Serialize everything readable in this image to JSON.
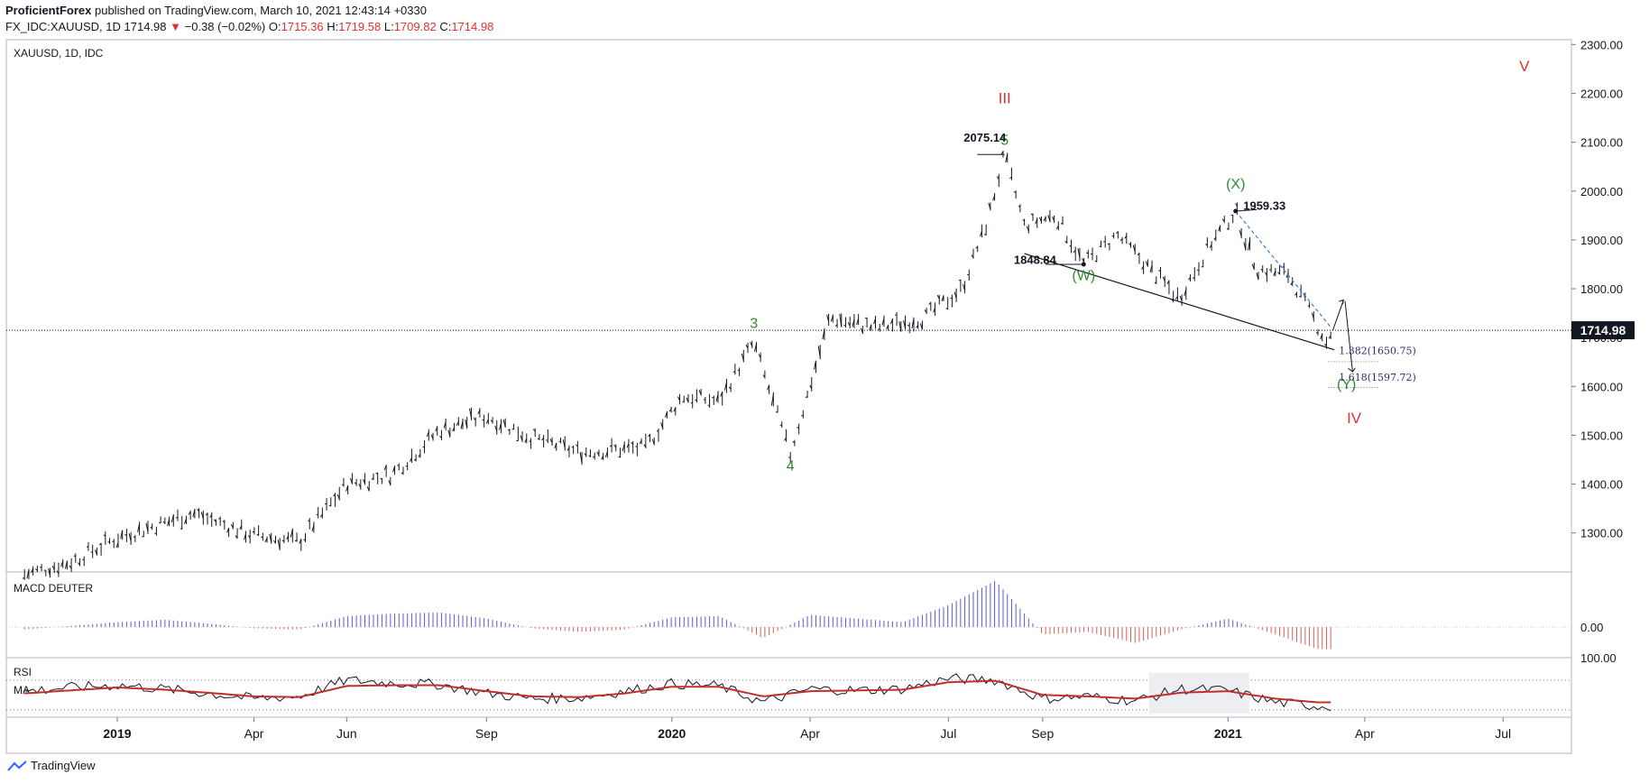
{
  "header": {
    "author": "ProficientForex",
    "published_text": "published on TradingView.com, March 10, 2021 12:43:14 +0330",
    "symbol": "FX_IDC:XAUUSD, 1D",
    "last": "1714.98",
    "change": "−0.38 (−0.02%)",
    "open_label": "O:",
    "open": "1715.36",
    "high_label": "H:",
    "high": "1719.58",
    "low_label": "L:",
    "low": "1709.82",
    "close_label": "C:",
    "close": "1714.98"
  },
  "pane_title": "XAUUSD, 1D, IDC",
  "price_label": "1714.98",
  "footer_brand": "TradingView",
  "colors": {
    "price_bars": "#131722",
    "wave_red": "#e0312b",
    "wave_green": "#2e8b2e",
    "macd_pos": "#5b5bd6",
    "macd_neg": "#e05a5a",
    "rsi": "#131722",
    "rsi_ma": "#c0302b",
    "trend_dash": "#3b7ddd"
  },
  "chart_data": [
    {
      "type": "line",
      "title": "XAUUSD, 1D, IDC",
      "xlabel": "",
      "ylabel": "",
      "ylim": [
        1220,
        2310
      ],
      "x_ticks": [
        "2019",
        "Apr",
        "Jun",
        "Sep",
        "2020",
        "Apr",
        "Jul",
        "Sep",
        "2021",
        "Apr",
        "Jul"
      ],
      "y_ticks": [
        "1300.00",
        "1400.00",
        "1500.00",
        "1600.00",
        "1700.00",
        "1800.00",
        "1900.00",
        "2000.00",
        "2100.00",
        "2200.00",
        "2300.00"
      ],
      "series": [
        {
          "name": "XAUUSD",
          "x": [
            "2018-11-01",
            "2018-12-01",
            "2019-01-01",
            "2019-02-20",
            "2019-04-01",
            "2019-05-01",
            "2019-06-01",
            "2019-07-01",
            "2019-08-01",
            "2019-09-01",
            "2019-10-01",
            "2019-11-01",
            "2019-12-15",
            "2020-01-08",
            "2020-02-01",
            "2020-02-24",
            "2020-03-19",
            "2020-04-14",
            "2020-05-15",
            "2020-06-15",
            "2020-07-10",
            "2020-07-27",
            "2020-08-07",
            "2020-08-20",
            "2020-09-10",
            "2020-09-28",
            "2020-10-20",
            "2020-11-30",
            "2020-12-20",
            "2021-01-06",
            "2021-01-20",
            "2021-02-10",
            "2021-03-08",
            "2021-03-10"
          ],
          "values": [
            1215,
            1240,
            1290,
            1340,
            1295,
            1282,
            1400,
            1420,
            1510,
            1540,
            1495,
            1465,
            1475,
            1580,
            1570,
            1690,
            1460,
            1740,
            1720,
            1740,
            1800,
            1940,
            2075,
            1930,
            1950,
            1850,
            1910,
            1780,
            1890,
            1959,
            1840,
            1830,
            1685,
            1715
          ]
        }
      ],
      "annotations": [
        {
          "text": "III",
          "color": "red",
          "x": "2020-08-07",
          "y": 2180
        },
        {
          "text": "V",
          "color": "red",
          "x": "2021-07-15",
          "y": 2245
        },
        {
          "text": "IV",
          "color": "red",
          "x": "2021-03-25",
          "y": 1525
        },
        {
          "text": "5",
          "color": "green",
          "x": "2020-08-07",
          "y": 2095
        },
        {
          "text": "3",
          "color": "green",
          "x": "2020-02-24",
          "y": 1720
        },
        {
          "text": "4",
          "color": "green",
          "x": "2020-03-19",
          "y": 1428
        },
        {
          "text": "(X)",
          "color": "green",
          "x": "2021-01-06",
          "y": 2005
        },
        {
          "text": "(W)",
          "color": "green",
          "x": "2020-09-28",
          "y": 1818
        },
        {
          "text": "(Y)",
          "color": "green",
          "x": "2021-03-20",
          "y": 1595
        },
        {
          "text": "2075.14",
          "color": "black",
          "x": "2020-07-25",
          "y": 2101
        },
        {
          "text": "1959.33",
          "color": "black",
          "x": "2021-01-25",
          "y": 1962
        },
        {
          "text": "1848.84",
          "color": "black",
          "x": "2020-08-27",
          "y": 1851
        },
        {
          "text": "1.382(1650.75)",
          "color": "navy",
          "x": "2021-03-15",
          "y": 1666
        },
        {
          "text": "1.618(1597.72)",
          "color": "navy",
          "x": "2021-03-15",
          "y": 1612
        }
      ]
    },
    {
      "type": "bar",
      "title": "MACD DEUTER",
      "y_ticks": [
        "0.00"
      ],
      "ylim": [
        -25,
        45
      ],
      "x": [
        "2018-11",
        "2018-12",
        "2019-01",
        "2019-02",
        "2019-03",
        "2019-04",
        "2019-05",
        "2019-06",
        "2019-07",
        "2019-08",
        "2019-09",
        "2019-10",
        "2019-11",
        "2019-12",
        "2020-01",
        "2020-02",
        "2020-03",
        "2020-04",
        "2020-05",
        "2020-06",
        "2020-07",
        "2020-08",
        "2020-09",
        "2020-10",
        "2020-11",
        "2020-12",
        "2021-01",
        "2021-02",
        "2021-03"
      ],
      "values": [
        -2,
        1,
        4,
        6,
        3,
        -1,
        -2,
        9,
        11,
        12,
        7,
        -1,
        -4,
        -2,
        8,
        9,
        -9,
        10,
        7,
        4,
        18,
        38,
        -6,
        -4,
        -13,
        -2,
        7,
        -6,
        -18
      ]
    },
    {
      "type": "line",
      "title": "RSI",
      "y_ticks": [
        "100.00"
      ],
      "ylim": [
        20,
        100
      ],
      "x": [
        "2018-11",
        "2018-12",
        "2019-01",
        "2019-02",
        "2019-03",
        "2019-04",
        "2019-05",
        "2019-06",
        "2019-07",
        "2019-08",
        "2019-09",
        "2019-10",
        "2019-11",
        "2019-12",
        "2020-01",
        "2020-02",
        "2020-03",
        "2020-04",
        "2020-05",
        "2020-06",
        "2020-07",
        "2020-08",
        "2020-09",
        "2020-10",
        "2020-11",
        "2020-12",
        "2021-01",
        "2021-02",
        "2021-03"
      ],
      "series": [
        {
          "name": "RSI",
          "values": [
            55,
            60,
            63,
            58,
            52,
            45,
            48,
            70,
            66,
            64,
            52,
            45,
            46,
            55,
            65,
            62,
            40,
            58,
            56,
            58,
            72,
            70,
            45,
            48,
            42,
            58,
            56,
            40,
            35
          ]
        },
        {
          "name": "MA",
          "values": [
            52,
            56,
            60,
            57,
            53,
            48,
            47,
            62,
            63,
            63,
            55,
            48,
            47,
            52,
            61,
            61,
            48,
            55,
            56,
            57,
            67,
            69,
            50,
            48,
            45,
            53,
            55,
            45,
            40
          ]
        }
      ],
      "levels": [
        70,
        30
      ]
    }
  ]
}
